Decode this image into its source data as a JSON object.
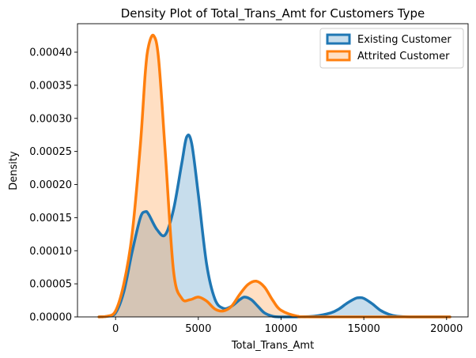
{
  "chart_data": {
    "type": "area",
    "title": "Density Plot of Total_Trans_Amt for Customers Type",
    "xlabel": "Total_Trans_Amt",
    "ylabel": "Density",
    "xlim": [
      -2300,
      21300
    ],
    "ylim": [
      0,
      0.000443
    ],
    "xticks": [
      0,
      5000,
      10000,
      15000,
      20000
    ],
    "xtick_labels": [
      "0",
      "5000",
      "10000",
      "15000",
      "20000"
    ],
    "yticks": [
      0,
      5e-05,
      0.0001,
      0.00015,
      0.0002,
      0.00025,
      0.0003,
      0.00035,
      0.0004
    ],
    "ytick_labels": [
      "0.00000",
      "0.00005",
      "0.00010",
      "0.00015",
      "0.00020",
      "0.00025",
      "0.00030",
      "0.00035",
      "0.00040"
    ],
    "grid": false,
    "legend_position": "top-right",
    "series": [
      {
        "name": "Existing Customer",
        "color": "#1f77b4",
        "fill": "#1f77b4",
        "x": [
          -1000,
          -500,
          0,
          500,
          1000,
          1500,
          1800,
          2000,
          2500,
          3000,
          3500,
          4000,
          4300,
          4600,
          5000,
          5500,
          6000,
          6500,
          7000,
          7500,
          7800,
          8200,
          8600,
          9000,
          9500,
          10000,
          11000,
          12000,
          13000,
          13500,
          14000,
          14500,
          14700,
          15000,
          15500,
          16000,
          16500,
          17000,
          18000,
          19000,
          20200
        ],
        "values": [
          0,
          1e-06,
          6e-06,
          3.8e-05,
          9.8e-05,
          0.00015,
          0.000159,
          0.000155,
          0.000132,
          0.000124,
          0.000162,
          0.000232,
          0.000272,
          0.000262,
          0.000185,
          8e-05,
          2.7e-05,
          1.3e-05,
          1.6e-05,
          2.6e-05,
          3e-05,
          2.6e-05,
          1.6e-05,
          6e-06,
          1e-06,
          0,
          0,
          1e-06,
          6e-06,
          1.2e-05,
          2.1e-05,
          2.8e-05,
          2.9e-05,
          2.8e-05,
          2e-05,
          1e-05,
          4e-06,
          1e-06,
          0,
          0,
          0
        ]
      },
      {
        "name": "Attrited Customer",
        "color": "#ff7f0e",
        "fill": "#ff7f0e",
        "x": [
          -1000,
          -500,
          0,
          500,
          1000,
          1500,
          1800,
          2000,
          2300,
          2600,
          3000,
          3500,
          4000,
          4500,
          5000,
          5500,
          6000,
          6500,
          7000,
          7500,
          8000,
          8500,
          9000,
          9500,
          10000,
          11000,
          12000,
          20200
        ],
        "values": [
          0,
          1e-06,
          9e-06,
          5e-05,
          0.000125,
          0.00026,
          0.00037,
          0.00041,
          0.000425,
          0.00039,
          0.00025,
          7e-05,
          2.8e-05,
          2.6e-05,
          3e-05,
          2.4e-05,
          1.2e-05,
          9e-06,
          1.6e-05,
          3.4e-05,
          4.9e-05,
          5.4e-05,
          4.5e-05,
          2.5e-05,
          1e-05,
          1e-06,
          0,
          0
        ]
      }
    ]
  }
}
